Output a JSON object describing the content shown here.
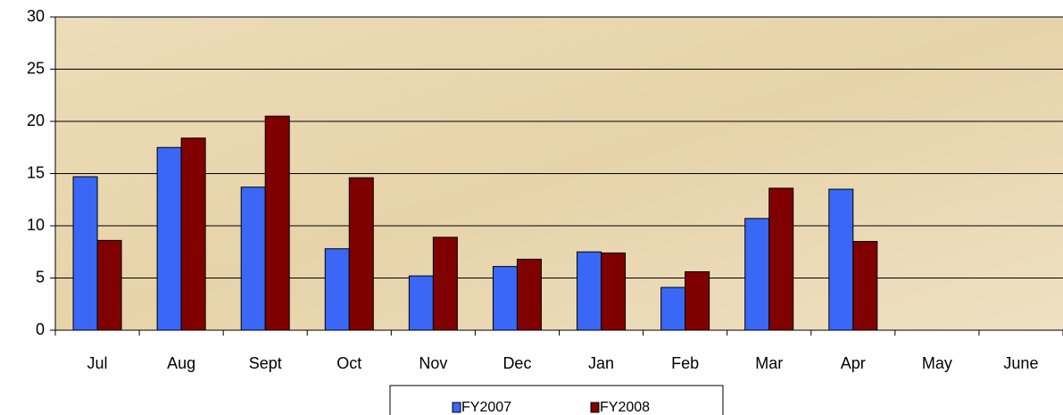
{
  "chart_data": {
    "type": "bar",
    "categories": [
      "Jul",
      "Aug",
      "Sept",
      "Oct",
      "Nov",
      "Dec",
      "Jan",
      "Feb",
      "Mar",
      "Apr",
      "May",
      "June"
    ],
    "series": [
      {
        "name": "FY2007",
        "color": "#3a67f5",
        "values": [
          14.7,
          17.5,
          13.7,
          7.8,
          5.2,
          6.1,
          7.5,
          4.1,
          10.7,
          13.5,
          null,
          null
        ]
      },
      {
        "name": "FY2008",
        "color": "#800000",
        "values": [
          8.6,
          18.4,
          20.5,
          14.6,
          8.9,
          6.8,
          7.4,
          5.6,
          13.6,
          8.5,
          null,
          null
        ]
      }
    ],
    "ylim": [
      0,
      30
    ],
    "yticks": [
      0,
      5,
      10,
      15,
      20,
      25,
      30
    ],
    "grid": true,
    "legend": "bottom"
  }
}
